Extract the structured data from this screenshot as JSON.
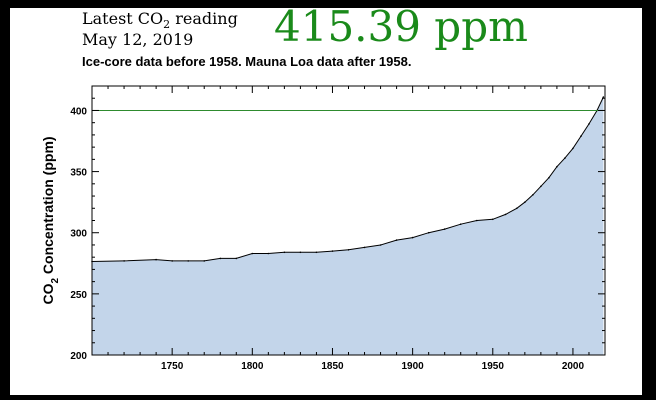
{
  "header": {
    "reading_label_prefix": "Latest CO",
    "reading_label_sub": "2",
    "reading_label_suffix": " reading",
    "reading_date": "May 12, 2019",
    "reading_value": "415.39 ppm",
    "subtitle": "Ice-core data before 1958. Mauna Loa data after 1958."
  },
  "colors": {
    "background_frame": "#000000",
    "reading_value": "#1a8a1a",
    "reference_line": "#2e8b2e",
    "fill": "#c3d5ea",
    "curve": "#000000"
  },
  "chart_data": {
    "type": "area",
    "title": "",
    "xlabel": "",
    "ylabel_prefix": "CO",
    "ylabel_sub": "2",
    "ylabel_suffix": " Concentration (ppm)",
    "xlim": [
      1700,
      2020
    ],
    "ylim": [
      200,
      420
    ],
    "xticks": [
      1750,
      1800,
      1850,
      1900,
      1950,
      2000
    ],
    "yticks": [
      200,
      250,
      300,
      350,
      400
    ],
    "reference_line": 400,
    "grid": false,
    "series": [
      {
        "x": [
          1700,
          1720,
          1740,
          1750,
          1760,
          1770,
          1780,
          1790,
          1800,
          1810,
          1820,
          1830,
          1840,
          1850,
          1860,
          1870,
          1880,
          1890,
          1900,
          1910,
          1920,
          1930,
          1940,
          1950,
          1958,
          1965,
          1970,
          1975,
          1980,
          1985,
          1990,
          1995,
          2000,
          2005,
          2010,
          2015,
          2019
        ],
        "y": [
          276.5,
          277,
          278,
          277,
          277,
          277,
          279,
          279,
          283,
          283,
          284,
          284,
          284,
          285,
          286,
          288,
          290,
          294,
          296,
          300,
          303,
          307,
          310,
          311,
          315,
          320,
          325,
          331,
          338,
          345,
          354,
          361,
          369,
          379,
          389,
          400,
          411
        ]
      }
    ]
  }
}
